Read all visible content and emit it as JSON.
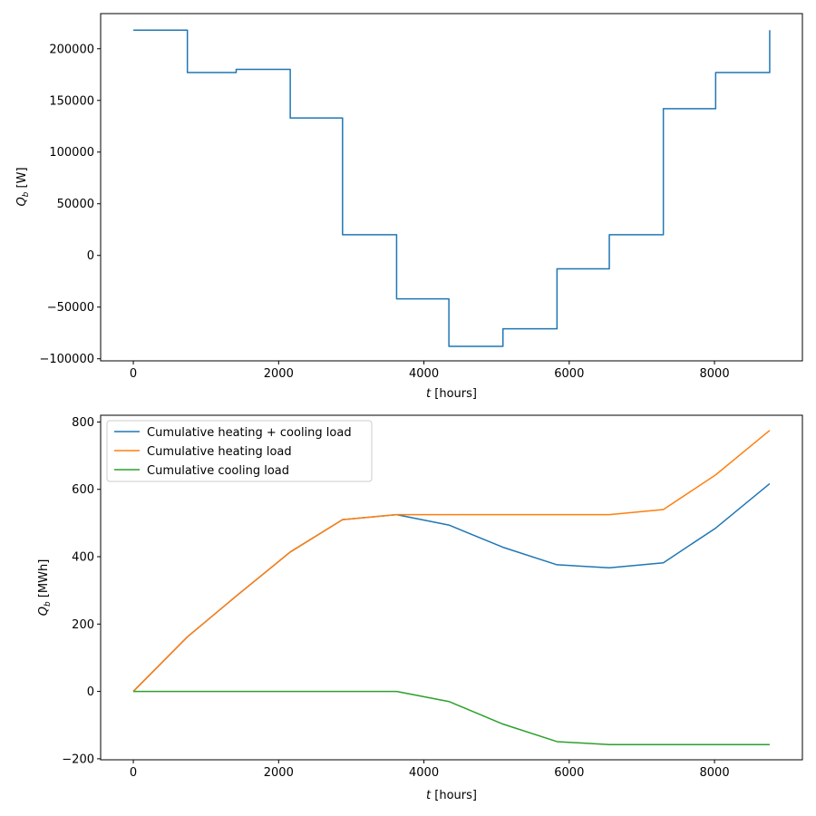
{
  "chart_data": [
    {
      "type": "line",
      "step": true,
      "title": "",
      "xlabel": "t [hours]",
      "ylabel": "Q_b [W]",
      "xlim": [
        -450,
        9210
      ],
      "ylim": [
        -102000,
        234000
      ],
      "xticks": [
        0,
        2000,
        4000,
        6000,
        8000
      ],
      "xtick_labels": [
        "0",
        "2000",
        "4000",
        "6000",
        "8000"
      ],
      "yticks": [
        -100000,
        -50000,
        0,
        50000,
        100000,
        150000,
        200000
      ],
      "ytick_labels": [
        "−100000",
        "−50000",
        "0",
        "50000",
        "100000",
        "150000",
        "200000"
      ],
      "grid": false,
      "series": [
        {
          "name": "Q_b",
          "color": "#1f77b4",
          "x": [
            0,
            744,
            744,
            1416,
            1416,
            2160,
            2160,
            2880,
            2880,
            3624,
            3624,
            4344,
            4344,
            5088,
            5088,
            5832,
            5832,
            6552,
            6552,
            7296,
            7296,
            8016,
            8016,
            8760,
            8760
          ],
          "y": [
            218000,
            218000,
            177000,
            177000,
            180000,
            180000,
            133000,
            133000,
            20000,
            20000,
            -42000,
            -42000,
            -88000,
            -88000,
            -71000,
            -71000,
            -13000,
            -13000,
            20000,
            20000,
            142000,
            142000,
            177000,
            177000,
            218000
          ]
        }
      ]
    },
    {
      "type": "line",
      "title": "",
      "xlabel": "t [hours]",
      "ylabel": "Q_b [MWh]",
      "xlim": [
        -450,
        9210
      ],
      "ylim": [
        -203,
        820
      ],
      "xticks": [
        0,
        2000,
        4000,
        6000,
        8000
      ],
      "xtick_labels": [
        "0",
        "2000",
        "4000",
        "6000",
        "8000"
      ],
      "yticks": [
        -200,
        0,
        200,
        400,
        600,
        800
      ],
      "ytick_labels": [
        "−200",
        "0",
        "200",
        "400",
        "600",
        "800"
      ],
      "grid": false,
      "legend_position": "top-left",
      "series": [
        {
          "name": "Cumulative heating + cooling load",
          "color": "#1f77b4",
          "x": [
            0,
            744,
            1416,
            2160,
            2880,
            3624,
            4344,
            5088,
            5832,
            6552,
            7296,
            8016,
            8760
          ],
          "y": [
            0,
            162,
            283,
            414,
            510,
            525,
            494,
            428,
            376,
            367,
            382,
            485,
            617
          ]
        },
        {
          "name": "Cumulative heating load",
          "color": "#ff7f0e",
          "x": [
            0,
            744,
            1416,
            2160,
            2880,
            3624,
            4344,
            5088,
            5832,
            6552,
            7296,
            8016,
            8760
          ],
          "y": [
            0,
            162,
            283,
            414,
            510,
            525,
            525,
            525,
            525,
            525,
            540,
            643,
            775
          ]
        },
        {
          "name": "Cumulative cooling load",
          "color": "#2ca02c",
          "x": [
            0,
            744,
            1416,
            2160,
            2880,
            3624,
            4344,
            5088,
            5832,
            6552,
            7296,
            8016,
            8760
          ],
          "y": [
            0,
            0,
            0,
            0,
            0,
            0,
            -30,
            -97,
            -149,
            -158,
            -158,
            -158,
            -158
          ]
        }
      ]
    }
  ]
}
